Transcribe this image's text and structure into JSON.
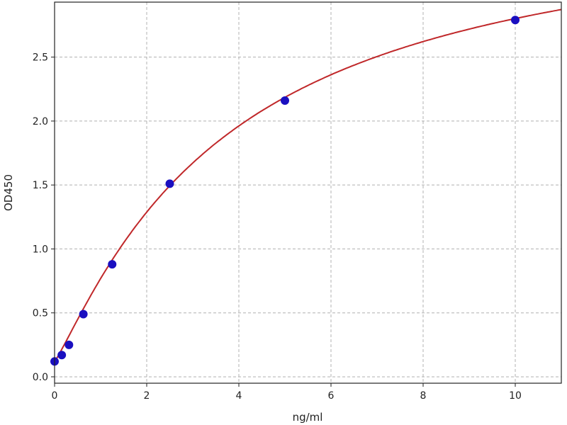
{
  "chart_data": {
    "type": "scatter",
    "title": "",
    "xlabel": "ng/ml",
    "ylabel": "OD450",
    "xlim": [
      0,
      11
    ],
    "ylim": [
      -0.05,
      2.93
    ],
    "grid": true,
    "x_ticks": [
      "0",
      "2",
      "4",
      "6",
      "8",
      "10"
    ],
    "y_ticks": [
      "0.0",
      "0.5",
      "1.0",
      "1.5",
      "2.0",
      "2.5"
    ],
    "series": [
      {
        "kind": "points",
        "color": "#1a0fc0",
        "x": [
          0,
          0.156,
          0.3125,
          0.625,
          1.25,
          2.5,
          5,
          10
        ],
        "y": [
          0.12,
          0.17,
          0.25,
          0.49,
          0.88,
          1.51,
          2.16,
          2.79
        ]
      },
      {
        "kind": "fitted-curve",
        "color": "#c0282a"
      }
    ]
  }
}
